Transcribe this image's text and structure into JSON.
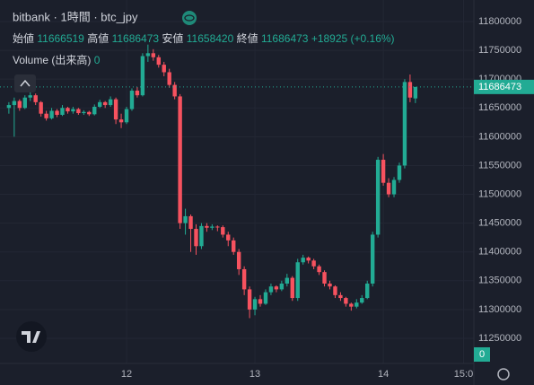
{
  "chart_data": {
    "type": "candlestick",
    "title": "bitbank · 1時間 · btc_jpy",
    "ohlc_labels": [
      "始値",
      "高値",
      "安値",
      "終値"
    ],
    "change": "+18925 (+0.16%)",
    "volume_label": "Volume (出来高)",
    "volume_value": "0",
    "up_color": "#22ab94",
    "down_color": "#f7525f",
    "grid": true,
    "x": [
      -22,
      -21,
      -20,
      -19,
      -18,
      -17,
      -16,
      -15,
      -14,
      -13,
      -12,
      -11,
      -10,
      -9,
      -8,
      -7,
      -6,
      -5,
      -4,
      -3,
      -2,
      -1,
      0,
      1,
      2,
      3,
      4,
      5,
      6,
      7,
      8,
      9,
      10,
      11,
      12,
      13,
      14,
      15,
      16,
      17,
      18,
      19,
      20,
      21,
      22,
      23,
      24,
      25,
      26,
      27,
      28,
      29,
      30,
      31,
      32,
      33,
      34,
      35,
      36,
      37,
      38,
      39,
      40,
      41,
      42,
      43,
      44,
      45,
      46,
      47,
      48,
      49,
      50,
      51,
      52,
      53,
      54
    ],
    "open": [
      11650000,
      11655000,
      11662000,
      11650000,
      11668000,
      11672000,
      11660000,
      11640000,
      11632000,
      11645000,
      11638000,
      11650000,
      11644000,
      11648000,
      11641000,
      11643000,
      11639000,
      11652000,
      11660000,
      11655000,
      11665000,
      11630000,
      11625000,
      11648000,
      11680000,
      11672000,
      11740000,
      11745000,
      11738000,
      11725000,
      11712000,
      11690000,
      11670000,
      11450000,
      11462000,
      11440000,
      11410000,
      11445000,
      11442000,
      11444000,
      11443000,
      11430000,
      11420000,
      11400000,
      11370000,
      11335000,
      11300000,
      11318000,
      11310000,
      11330000,
      11340000,
      11335000,
      11345000,
      11355000,
      11320000,
      11382000,
      11390000,
      11385000,
      11375000,
      11365000,
      11345000,
      11340000,
      11325000,
      11320000,
      11310000,
      11305000,
      11312000,
      11320000,
      11345000,
      11430000,
      11560000,
      11520000,
      11500000,
      11525000,
      11550000,
      11695000,
      11666519
    ],
    "high": [
      11660000,
      11668000,
      11665000,
      11672000,
      11678000,
      11675000,
      11662000,
      11645000,
      11650000,
      11648000,
      11655000,
      11652000,
      11652000,
      11650000,
      11646000,
      11645000,
      11656000,
      11664000,
      11662000,
      11670000,
      11668000,
      11640000,
      11652000,
      11684000,
      11686000,
      11745000,
      11760000,
      11752000,
      11742000,
      11730000,
      11718000,
      11695000,
      11674000,
      11475000,
      11465000,
      11448000,
      11450000,
      11450000,
      11448000,
      11446000,
      11446000,
      11435000,
      11425000,
      11405000,
      11375000,
      11340000,
      11322000,
      11325000,
      11335000,
      11345000,
      11342000,
      11350000,
      11362000,
      11358000,
      11388000,
      11395000,
      11392000,
      11388000,
      11378000,
      11368000,
      11350000,
      11342000,
      11330000,
      11322000,
      11312000,
      11318000,
      11325000,
      11350000,
      11435000,
      11565000,
      11570000,
      11528000,
      11530000,
      11555000,
      11700000,
      11708000,
      11686473
    ],
    "low": [
      11640000,
      11600000,
      11645000,
      11648000,
      11662000,
      11655000,
      11635000,
      11628000,
      11630000,
      11634000,
      11636000,
      11640000,
      11640000,
      11638000,
      11638000,
      11636000,
      11637000,
      11650000,
      11650000,
      11652000,
      11622000,
      11615000,
      11622000,
      11645000,
      11668000,
      11670000,
      11730000,
      11732000,
      11720000,
      11705000,
      11685000,
      11665000,
      11440000,
      11430000,
      11400000,
      11395000,
      11405000,
      11435000,
      11438000,
      11436000,
      11425000,
      11410000,
      11395000,
      11360000,
      11325000,
      11285000,
      11290000,
      11305000,
      11308000,
      11325000,
      11330000,
      11332000,
      11340000,
      11315000,
      11315000,
      11378000,
      11380000,
      11370000,
      11360000,
      11340000,
      11335000,
      11320000,
      11315000,
      11305000,
      11298000,
      11302000,
      11310000,
      11318000,
      11340000,
      11425000,
      11515000,
      11495000,
      11495000,
      11520000,
      11545000,
      11660000,
      11658420
    ],
    "close": [
      11655000,
      11662000,
      11650000,
      11668000,
      11672000,
      11660000,
      11640000,
      11632000,
      11645000,
      11638000,
      11650000,
      11644000,
      11648000,
      11641000,
      11643000,
      11639000,
      11652000,
      11660000,
      11655000,
      11665000,
      11630000,
      11625000,
      11648000,
      11680000,
      11672000,
      11740000,
      11745000,
      11738000,
      11725000,
      11712000,
      11690000,
      11670000,
      11450000,
      11462000,
      11440000,
      11410000,
      11445000,
      11442000,
      11444000,
      11443000,
      11430000,
      11420000,
      11400000,
      11370000,
      11335000,
      11300000,
      11318000,
      11310000,
      11330000,
      11340000,
      11335000,
      11345000,
      11355000,
      11320000,
      11382000,
      11390000,
      11385000,
      11375000,
      11365000,
      11345000,
      11340000,
      11325000,
      11320000,
      11310000,
      11305000,
      11312000,
      11320000,
      11345000,
      11430000,
      11560000,
      11520000,
      11500000,
      11525000,
      11550000,
      11695000,
      11668000,
      11686473
    ],
    "xlim": [
      -23.66,
      64.93
    ],
    "xticks": [
      {
        "value": 0,
        "label": "12"
      },
      {
        "value": 24,
        "label": "13"
      },
      {
        "value": 48,
        "label": "14"
      },
      {
        "value": 63,
        "label": "15:0"
      }
    ],
    "ylim": [
      11206330,
      11837400
    ],
    "yticks": [
      11250000,
      11300000,
      11350000,
      11400000,
      11450000,
      11500000,
      11550000,
      11600000,
      11650000,
      11700000,
      11750000,
      11800000
    ]
  }
}
